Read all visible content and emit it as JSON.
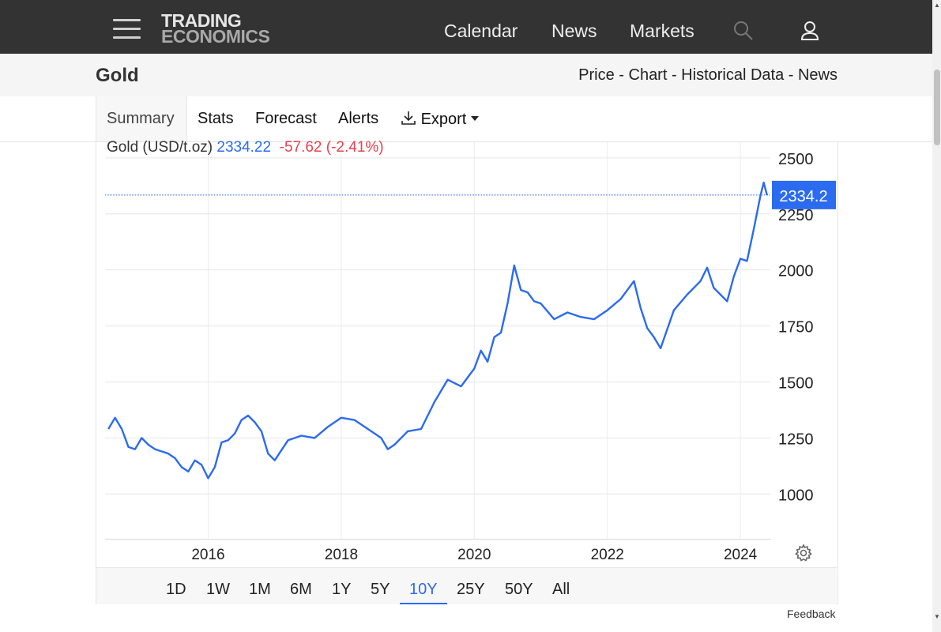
{
  "nav": {
    "logo_line1": "TRADING",
    "logo_line2": "ECONOMICS",
    "links": [
      "Calendar",
      "News",
      "Markets"
    ],
    "icons": [
      "menu-icon",
      "search-icon",
      "user-icon"
    ]
  },
  "page": {
    "title": "Gold",
    "breadcrumbs": "Price - Chart - Historical Data - News"
  },
  "tabs": {
    "summary": "Summary",
    "stats": "Stats",
    "forecast": "Forecast",
    "alerts": "Alerts",
    "export": "Export"
  },
  "quote": {
    "name": "Gold (USD/t.oz)",
    "price": "2334.22",
    "change": "-57.62 (-2.41%)",
    "last_label": "2334.2"
  },
  "ranges": {
    "items": [
      "1D",
      "1W",
      "1M",
      "6M",
      "1Y",
      "5Y",
      "10Y",
      "25Y",
      "50Y",
      "All"
    ],
    "active": "10Y"
  },
  "feedback": "Feedback",
  "colors": {
    "nav_bg": "#333333",
    "line": "#2b6bf0",
    "negative": "#e8434f",
    "label_bg": "#2b6bf0"
  },
  "chart_data": {
    "type": "line",
    "series": [
      {
        "name": "Gold (USD/t.oz)",
        "x": [
          2014.5,
          2014.6,
          2014.7,
          2014.8,
          2014.9,
          2015.0,
          2015.1,
          2015.2,
          2015.3,
          2015.4,
          2015.5,
          2015.6,
          2015.7,
          2015.8,
          2015.9,
          2016.0,
          2016.1,
          2016.2,
          2016.3,
          2016.4,
          2016.5,
          2016.6,
          2016.7,
          2016.8,
          2016.9,
          2017.0,
          2017.2,
          2017.4,
          2017.6,
          2017.8,
          2018.0,
          2018.2,
          2018.4,
          2018.6,
          2018.7,
          2018.8,
          2019.0,
          2019.2,
          2019.4,
          2019.6,
          2019.8,
          2020.0,
          2020.1,
          2020.2,
          2020.3,
          2020.4,
          2020.5,
          2020.6,
          2020.7,
          2020.8,
          2020.9,
          2021.0,
          2021.2,
          2021.4,
          2021.6,
          2021.8,
          2022.0,
          2022.2,
          2022.4,
          2022.5,
          2022.6,
          2022.7,
          2022.8,
          2023.0,
          2023.2,
          2023.4,
          2023.5,
          2023.6,
          2023.8,
          2023.9,
          2024.0,
          2024.1,
          2024.2,
          2024.3,
          2024.35,
          2024.4
        ],
        "y": [
          1290,
          1340,
          1290,
          1210,
          1200,
          1250,
          1220,
          1200,
          1190,
          1180,
          1160,
          1120,
          1100,
          1150,
          1130,
          1070,
          1120,
          1230,
          1240,
          1270,
          1330,
          1350,
          1320,
          1280,
          1180,
          1150,
          1240,
          1260,
          1250,
          1300,
          1340,
          1330,
          1290,
          1250,
          1200,
          1220,
          1280,
          1290,
          1410,
          1510,
          1480,
          1560,
          1640,
          1590,
          1700,
          1720,
          1850,
          2020,
          1910,
          1900,
          1860,
          1850,
          1780,
          1810,
          1790,
          1780,
          1820,
          1870,
          1950,
          1830,
          1740,
          1700,
          1650,
          1820,
          1890,
          1950,
          2010,
          1920,
          1860,
          1970,
          2050,
          2040,
          2180,
          2330,
          2390,
          2334
        ]
      }
    ],
    "xlim": [
      2014.45,
      2024.45
    ],
    "ylim": [
      800,
      2570
    ],
    "xticks": [
      "2016",
      "2018",
      "2020",
      "2022",
      "2024"
    ],
    "xtick_values": [
      2016,
      2018,
      2020,
      2022,
      2024
    ],
    "yticks": [
      1000,
      1250,
      1500,
      1750,
      2000,
      2250,
      2500
    ],
    "last_value": 2334.2,
    "grid": true,
    "y_axis_side": "right"
  }
}
